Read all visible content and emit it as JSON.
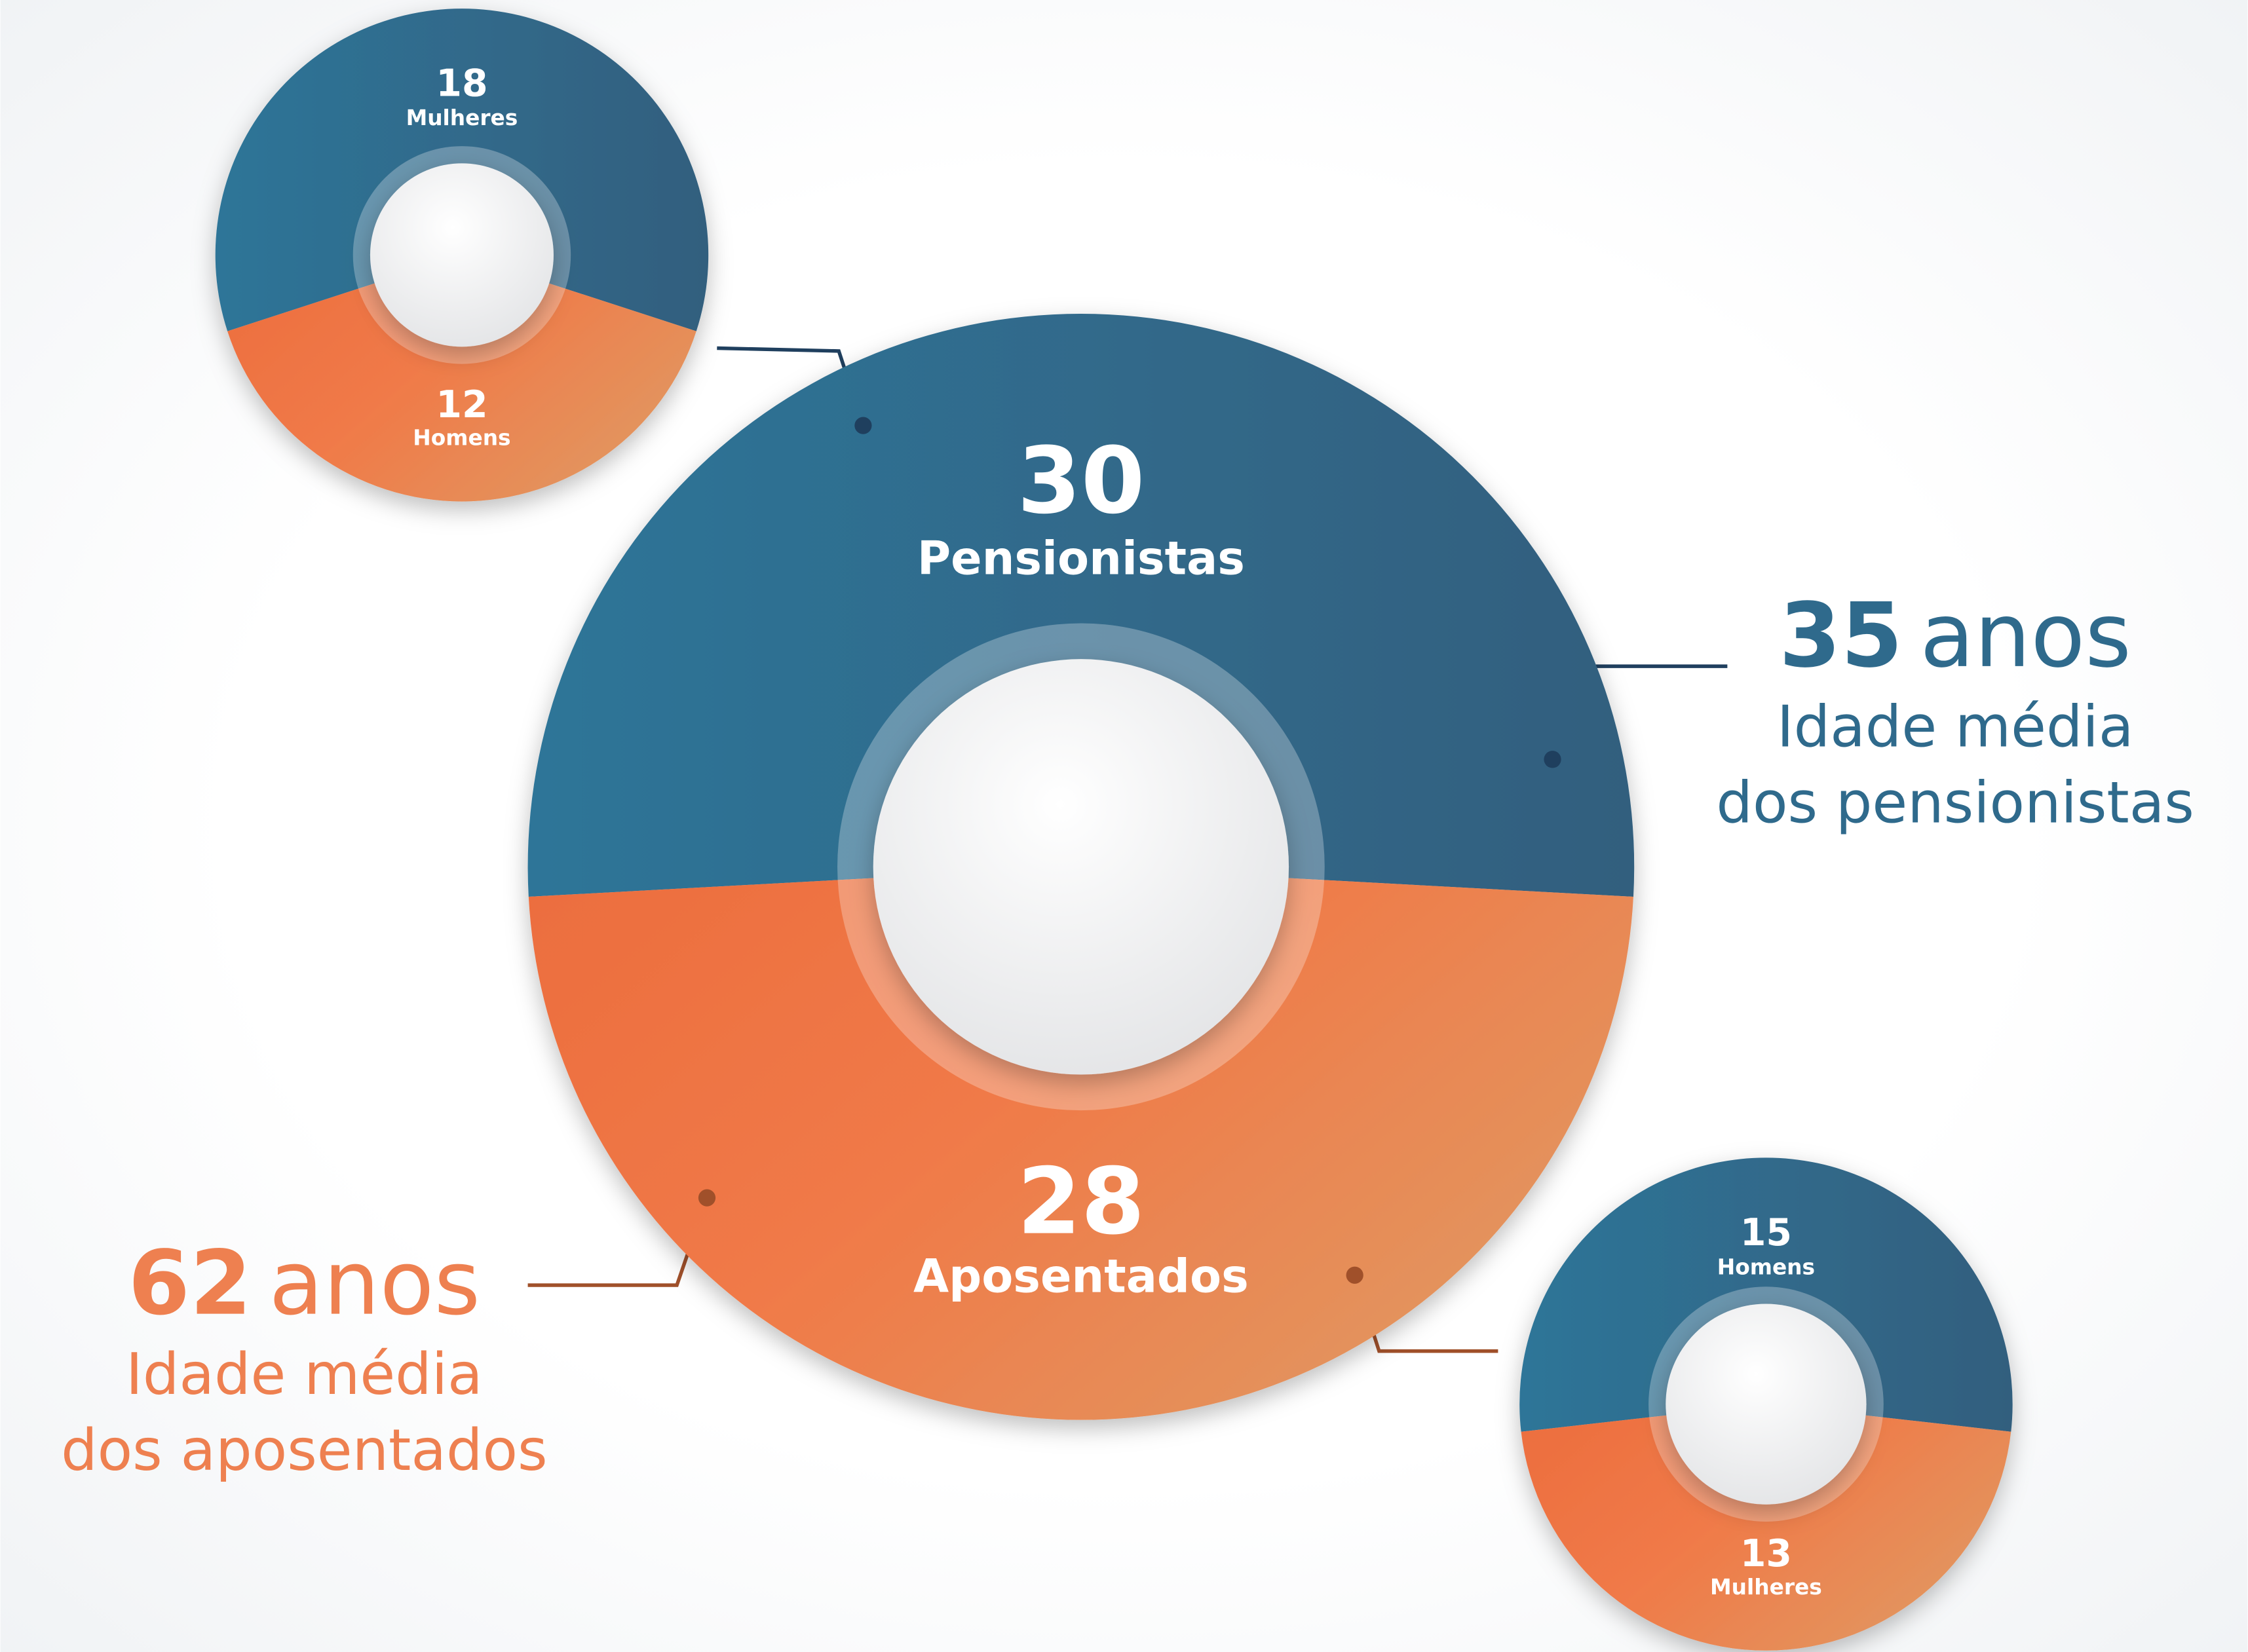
{
  "chart_data": [
    {
      "type": "donut",
      "categories": [
        "Pensionistas",
        "Aposentados"
      ],
      "values": [
        30,
        28
      ],
      "colors": [
        "#2e6f93",
        "#ee7747"
      ]
    },
    {
      "type": "donut",
      "categories": [
        "Mulheres",
        "Homens"
      ],
      "values": [
        18,
        12
      ],
      "colors": [
        "#2e6f93",
        "#ee7747"
      ]
    },
    {
      "type": "donut",
      "categories": [
        "Homens",
        "Mulheres"
      ],
      "values": [
        15,
        13
      ],
      "colors": [
        "#2e6f93",
        "#ee7747"
      ]
    }
  ],
  "annotations": [
    {
      "value": 35,
      "unit": "anos",
      "lines": [
        "Idade média",
        "dos pensionistas"
      ],
      "color": "#2f6a8c"
    },
    {
      "value": 62,
      "unit": "anos",
      "lines": [
        "Idade média",
        "dos aposentados"
      ],
      "color": "#ee8050"
    }
  ]
}
